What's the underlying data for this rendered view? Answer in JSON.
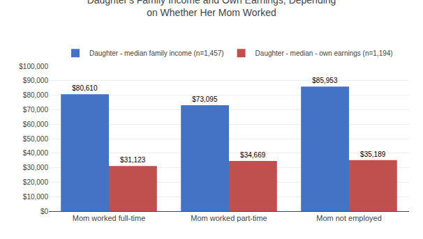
{
  "chart_data": {
    "type": "bar",
    "title": "Daughter's Family Income and Own Earnings, Depending\non Whether Her Mom Worked",
    "categories": [
      "Mom worked full-time",
      "Mom worked part-time",
      "Mom not employed"
    ],
    "series": [
      {
        "name": "Daughter - median family income (n=1,457)",
        "color": "#4472C4",
        "values": [
          80610,
          73095,
          85953
        ],
        "value_labels": [
          "$80,610",
          "$73,095",
          "$85,953"
        ]
      },
      {
        "name": "Daughter - median - own earnings (n=1,194)",
        "color": "#C0504D",
        "values": [
          31123,
          34669,
          35189
        ],
        "value_labels": [
          "$31,123",
          "$34,669",
          "$35,189"
        ]
      }
    ],
    "ylim": [
      0,
      100000
    ],
    "yticks": [
      {
        "value": 0,
        "label": "$0"
      },
      {
        "value": 10000,
        "label": "$10,000"
      },
      {
        "value": 20000,
        "label": "$20,000"
      },
      {
        "value": 30000,
        "label": "$30,000"
      },
      {
        "value": 40000,
        "label": "$40,000"
      },
      {
        "value": 50000,
        "label": "$50,000"
      },
      {
        "value": 60000,
        "label": "$60,000"
      },
      {
        "value": 70000,
        "label": "$70,000"
      },
      {
        "value": 80000,
        "label": "$80,000"
      },
      {
        "value": 90000,
        "label": "$90,000"
      },
      {
        "value": 100000,
        "label": "$100,000"
      }
    ],
    "grid": true,
    "data_labels": true,
    "legend": "top"
  }
}
